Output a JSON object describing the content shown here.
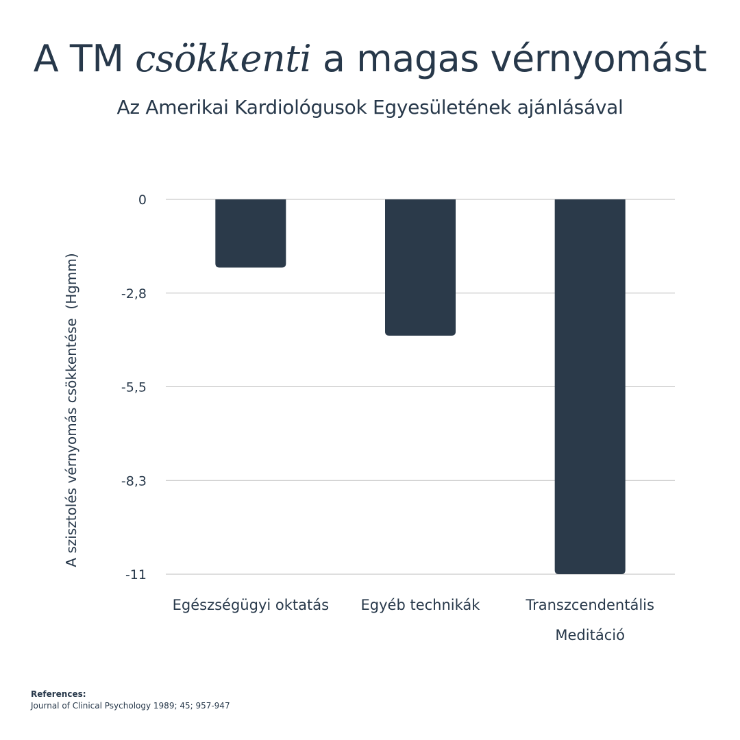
{
  "header": {
    "title_before": "A TM ",
    "title_emphasis": "csökkenti",
    "title_after": " a magas vérnyomást",
    "subtitle": "Az Amerikai Kardiológusok Egyesületének ajánlásával"
  },
  "chart_data": {
    "type": "bar",
    "categories": [
      [
        "Egészségügyi oktatás"
      ],
      [
        "Egyéb technikák"
      ],
      [
        "Transzcendentális",
        "Meditáció"
      ]
    ],
    "values": [
      -2.0,
      -4.0,
      -11.0
    ],
    "ylabel": "A szisztolés vérnyomás csökkentése  (Hgmm)",
    "ylim": [
      -11,
      0
    ],
    "yticks": [
      0,
      -2.75,
      -5.5,
      -8.25,
      -11
    ],
    "ytick_labels": [
      "0",
      "-2,8",
      "-5,5",
      "-8,3",
      "-11"
    ],
    "grid": true,
    "bar_color": "#2b3a4a",
    "grid_color": "#bdbdbd",
    "text_color": "#27384a"
  },
  "references": {
    "heading": "References:",
    "text": "Journal of Clinical Psychology 1989; 45; 957-947"
  }
}
